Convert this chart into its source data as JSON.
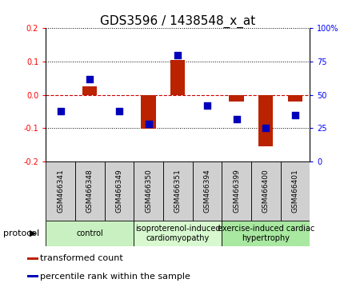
{
  "title": "GDS3596 / 1438548_x_at",
  "samples": [
    "GSM466341",
    "GSM466348",
    "GSM466349",
    "GSM466350",
    "GSM466351",
    "GSM466394",
    "GSM466399",
    "GSM466400",
    "GSM466401"
  ],
  "transformed_count": [
    0.0,
    0.025,
    0.0,
    -0.103,
    0.105,
    0.0,
    -0.02,
    -0.155,
    -0.02
  ],
  "percentile_rank": [
    38,
    62,
    38,
    28,
    80,
    42,
    32,
    25,
    35
  ],
  "groups": [
    {
      "label": "control",
      "start": 0,
      "end": 3,
      "color": "#c8f0c0"
    },
    {
      "label": "isoproterenol-induced\ncardiomyopathy",
      "start": 3,
      "end": 6,
      "color": "#d8f8d0"
    },
    {
      "label": "exercise-induced cardiac\nhypertrophy",
      "start": 6,
      "end": 9,
      "color": "#a8e8a0"
    }
  ],
  "protocol_label": "protocol",
  "ylim_left": [
    -0.2,
    0.2
  ],
  "ylim_right": [
    0,
    100
  ],
  "yticks_left": [
    -0.2,
    -0.1,
    0.0,
    0.1,
    0.2
  ],
  "yticks_right": [
    0,
    25,
    50,
    75,
    100
  ],
  "bar_color": "#bb2200",
  "dot_color": "#0000bb",
  "bar_width": 0.5,
  "dot_size": 35,
  "legend_bar_label": "transformed count",
  "legend_dot_label": "percentile rank within the sample",
  "background_color": "#ffffff",
  "sample_box_color": "#d0d0d0",
  "zero_line_color": "#cc0000",
  "tick_label_fontsize": 7,
  "title_fontsize": 11,
  "label_fontsize": 8,
  "group_label_fontsize": 7
}
